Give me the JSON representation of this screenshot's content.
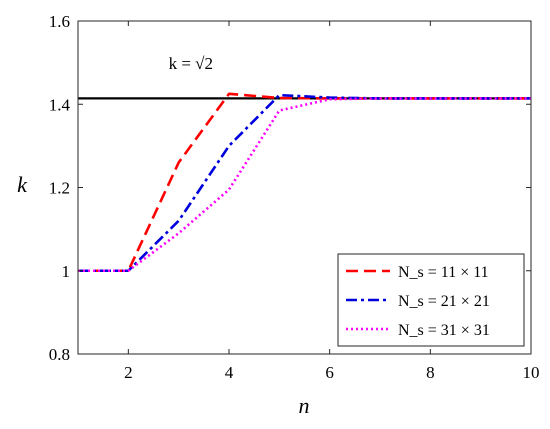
{
  "chart_data": {
    "type": "line",
    "xlabel": "n",
    "ylabel": "k",
    "xlim": [
      1,
      10
    ],
    "ylim": [
      0.8,
      1.6
    ],
    "xticks": [
      2,
      4,
      6,
      8,
      10
    ],
    "yticks": [
      0.8,
      1,
      1.2,
      1.4,
      1.6
    ],
    "xtick_labels": [
      "2",
      "4",
      "6",
      "8",
      "10"
    ],
    "ytick_labels": [
      "0.8",
      "1",
      "1.2",
      "1.4",
      "1.6"
    ],
    "grid": false,
    "legend_position": "bottom-right",
    "reference_line": {
      "y": 1.4142,
      "color": "#000000",
      "label": "k = √2",
      "label_x": 2.8,
      "label_y": 1.485
    },
    "x": [
      1,
      2,
      3,
      4,
      5,
      6,
      7,
      8,
      9,
      10
    ],
    "series": [
      {
        "name": "N_s = 11 × 11",
        "color": "#ff0000",
        "dash": "dashed",
        "values": [
          1.0,
          1.0,
          1.26,
          1.425,
          1.415,
          1.414,
          1.414,
          1.414,
          1.414,
          1.414
        ]
      },
      {
        "name": "N_s = 21 × 21",
        "color": "#0000dd",
        "dash": "dashdot",
        "values": [
          1.0,
          1.0,
          1.12,
          1.3,
          1.422,
          1.416,
          1.414,
          1.414,
          1.414,
          1.414
        ]
      },
      {
        "name": "N_s = 31 × 31",
        "color": "#ff00ff",
        "dash": "dotted",
        "values": [
          1.0,
          1.0,
          1.09,
          1.195,
          1.385,
          1.412,
          1.414,
          1.414,
          1.414,
          1.414
        ]
      }
    ]
  }
}
